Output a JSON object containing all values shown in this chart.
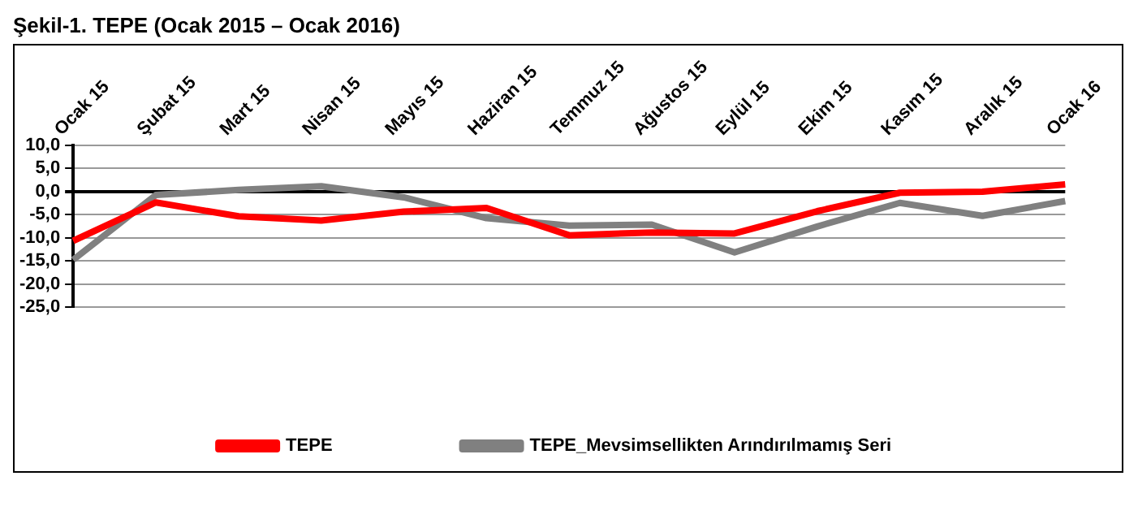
{
  "chart_data": {
    "type": "line",
    "title": "Şekil-1. TEPE (Ocak 2015 – Ocak 2016)",
    "categories": [
      "Ocak 15",
      "Şubat 15",
      "Mart 15",
      "Nisan 15",
      "Mayıs 15",
      "Haziran 15",
      "Temmuz 15",
      "Ağustos 15",
      "Eylül 15",
      "Ekim 15",
      "Kasım 15",
      "Aralık 15",
      "Ocak 16"
    ],
    "series": [
      {
        "name": "TEPE",
        "color": "#ff0000",
        "values": [
          -10.7,
          -2.4,
          -5.4,
          -6.3,
          -4.4,
          -3.6,
          -9.5,
          -8.9,
          -9.1,
          -4.3,
          -0.3,
          -0.1,
          1.5
        ]
      },
      {
        "name": "TEPE_Mevsimsellikten Arındırılmamış Seri",
        "color": "#808080",
        "values": [
          -14.8,
          -0.8,
          0.3,
          1.1,
          -1.3,
          -5.8,
          -7.4,
          -7.2,
          -13.2,
          -7.6,
          -2.5,
          -5.3,
          -2.1
        ]
      }
    ],
    "ylim": [
      -25,
      10
    ],
    "yticks": [
      {
        "value": -25,
        "label": "-25,0"
      },
      {
        "value": -20,
        "label": "-20,0"
      },
      {
        "value": -15,
        "label": "-15,0"
      },
      {
        "value": -10,
        "label": "-10,0"
      },
      {
        "value": -5,
        "label": "-5,0"
      },
      {
        "value": 0,
        "label": "0,0"
      },
      {
        "value": 5,
        "label": "5,0"
      },
      {
        "value": 10,
        "label": "10,0"
      }
    ],
    "grid": "y",
    "legend": "bottom",
    "marker": "none",
    "line_style": "solid"
  }
}
